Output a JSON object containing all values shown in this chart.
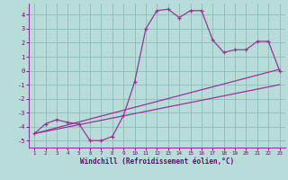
{
  "hours": [
    1,
    2,
    3,
    4,
    5,
    6,
    7,
    8,
    9,
    10,
    11,
    12,
    13,
    14,
    15,
    16,
    17,
    18,
    19,
    20,
    21,
    22,
    23
  ],
  "windchill": [
    -4.5,
    -3.8,
    -3.5,
    -3.7,
    -3.8,
    -5.0,
    -5.0,
    -4.7,
    -3.2,
    -0.8,
    3.0,
    4.3,
    4.4,
    3.8,
    4.3,
    4.3,
    2.2,
    1.3,
    1.5,
    1.5,
    2.1,
    2.1,
    0.0
  ],
  "trend1_x": [
    1,
    23
  ],
  "trend1_y": [
    -4.5,
    0.1
  ],
  "trend2_x": [
    1,
    23
  ],
  "trend2_y": [
    -4.5,
    -1.0
  ],
  "ylim": [
    -5.5,
    4.8
  ],
  "xlim": [
    0.5,
    23.5
  ],
  "yticks": [
    -5,
    -4,
    -3,
    -2,
    -1,
    0,
    1,
    2,
    3,
    4
  ],
  "bg_color": "#b8ddd8",
  "grid_color": "#8cbcb8",
  "line_color": "#993399",
  "xlabel": "Windchill (Refroidissement éolien,°C)",
  "xlabel_color": "#770077",
  "tick_color": "#770077"
}
